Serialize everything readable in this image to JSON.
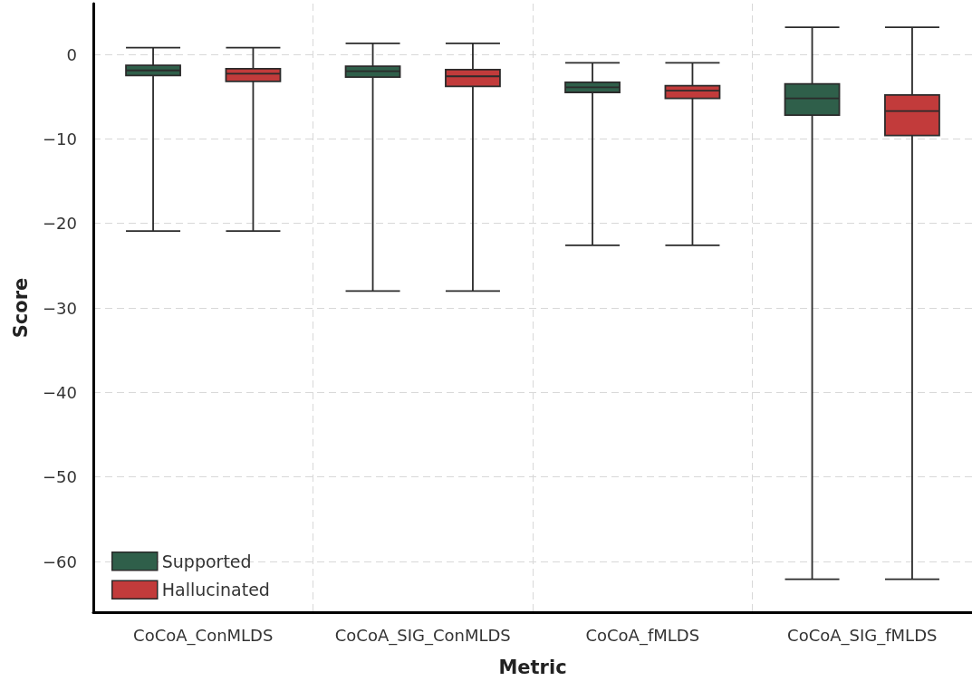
{
  "chart_data": {
    "type": "box",
    "xlabel": "Metric",
    "ylabel": "Score",
    "categories": [
      "CoCoA_ConMLDS",
      "CoCoA_SIG_ConMLDS",
      "CoCoA_fMLDS",
      "CoCoA_SIG_fMLDS"
    ],
    "series": [
      {
        "name": "Supported",
        "color": "#2f5f4a",
        "boxes": [
          {
            "low": -20.9,
            "q1": -2.5,
            "median": -1.9,
            "q3": -1.3,
            "high": 0.8
          },
          {
            "low": -28.0,
            "q1": -2.7,
            "median": -2.0,
            "q3": -1.4,
            "high": 1.3
          },
          {
            "low": -22.6,
            "q1": -4.5,
            "median": -3.9,
            "q3": -3.3,
            "high": -1.0
          },
          {
            "low": -62.1,
            "q1": -7.2,
            "median": -5.2,
            "q3": -3.5,
            "high": 3.2
          }
        ]
      },
      {
        "name": "Hallucinated",
        "color": "#c23b3b",
        "boxes": [
          {
            "low": -20.9,
            "q1": -3.2,
            "median": -2.3,
            "q3": -1.7,
            "high": 0.8
          },
          {
            "low": -28.0,
            "q1": -3.8,
            "median": -2.6,
            "q3": -1.8,
            "high": 1.3
          },
          {
            "low": -22.6,
            "q1": -5.2,
            "median": -4.3,
            "q3": -3.7,
            "high": -1.0
          },
          {
            "low": -62.1,
            "q1": -9.6,
            "median": -6.7,
            "q3": -4.8,
            "high": 3.2
          }
        ]
      }
    ],
    "ylim": [
      -66,
      6
    ],
    "yticks": [
      -60,
      -50,
      -40,
      -30,
      -20,
      -10,
      0
    ],
    "grid": true,
    "legend": "bottom left"
  }
}
